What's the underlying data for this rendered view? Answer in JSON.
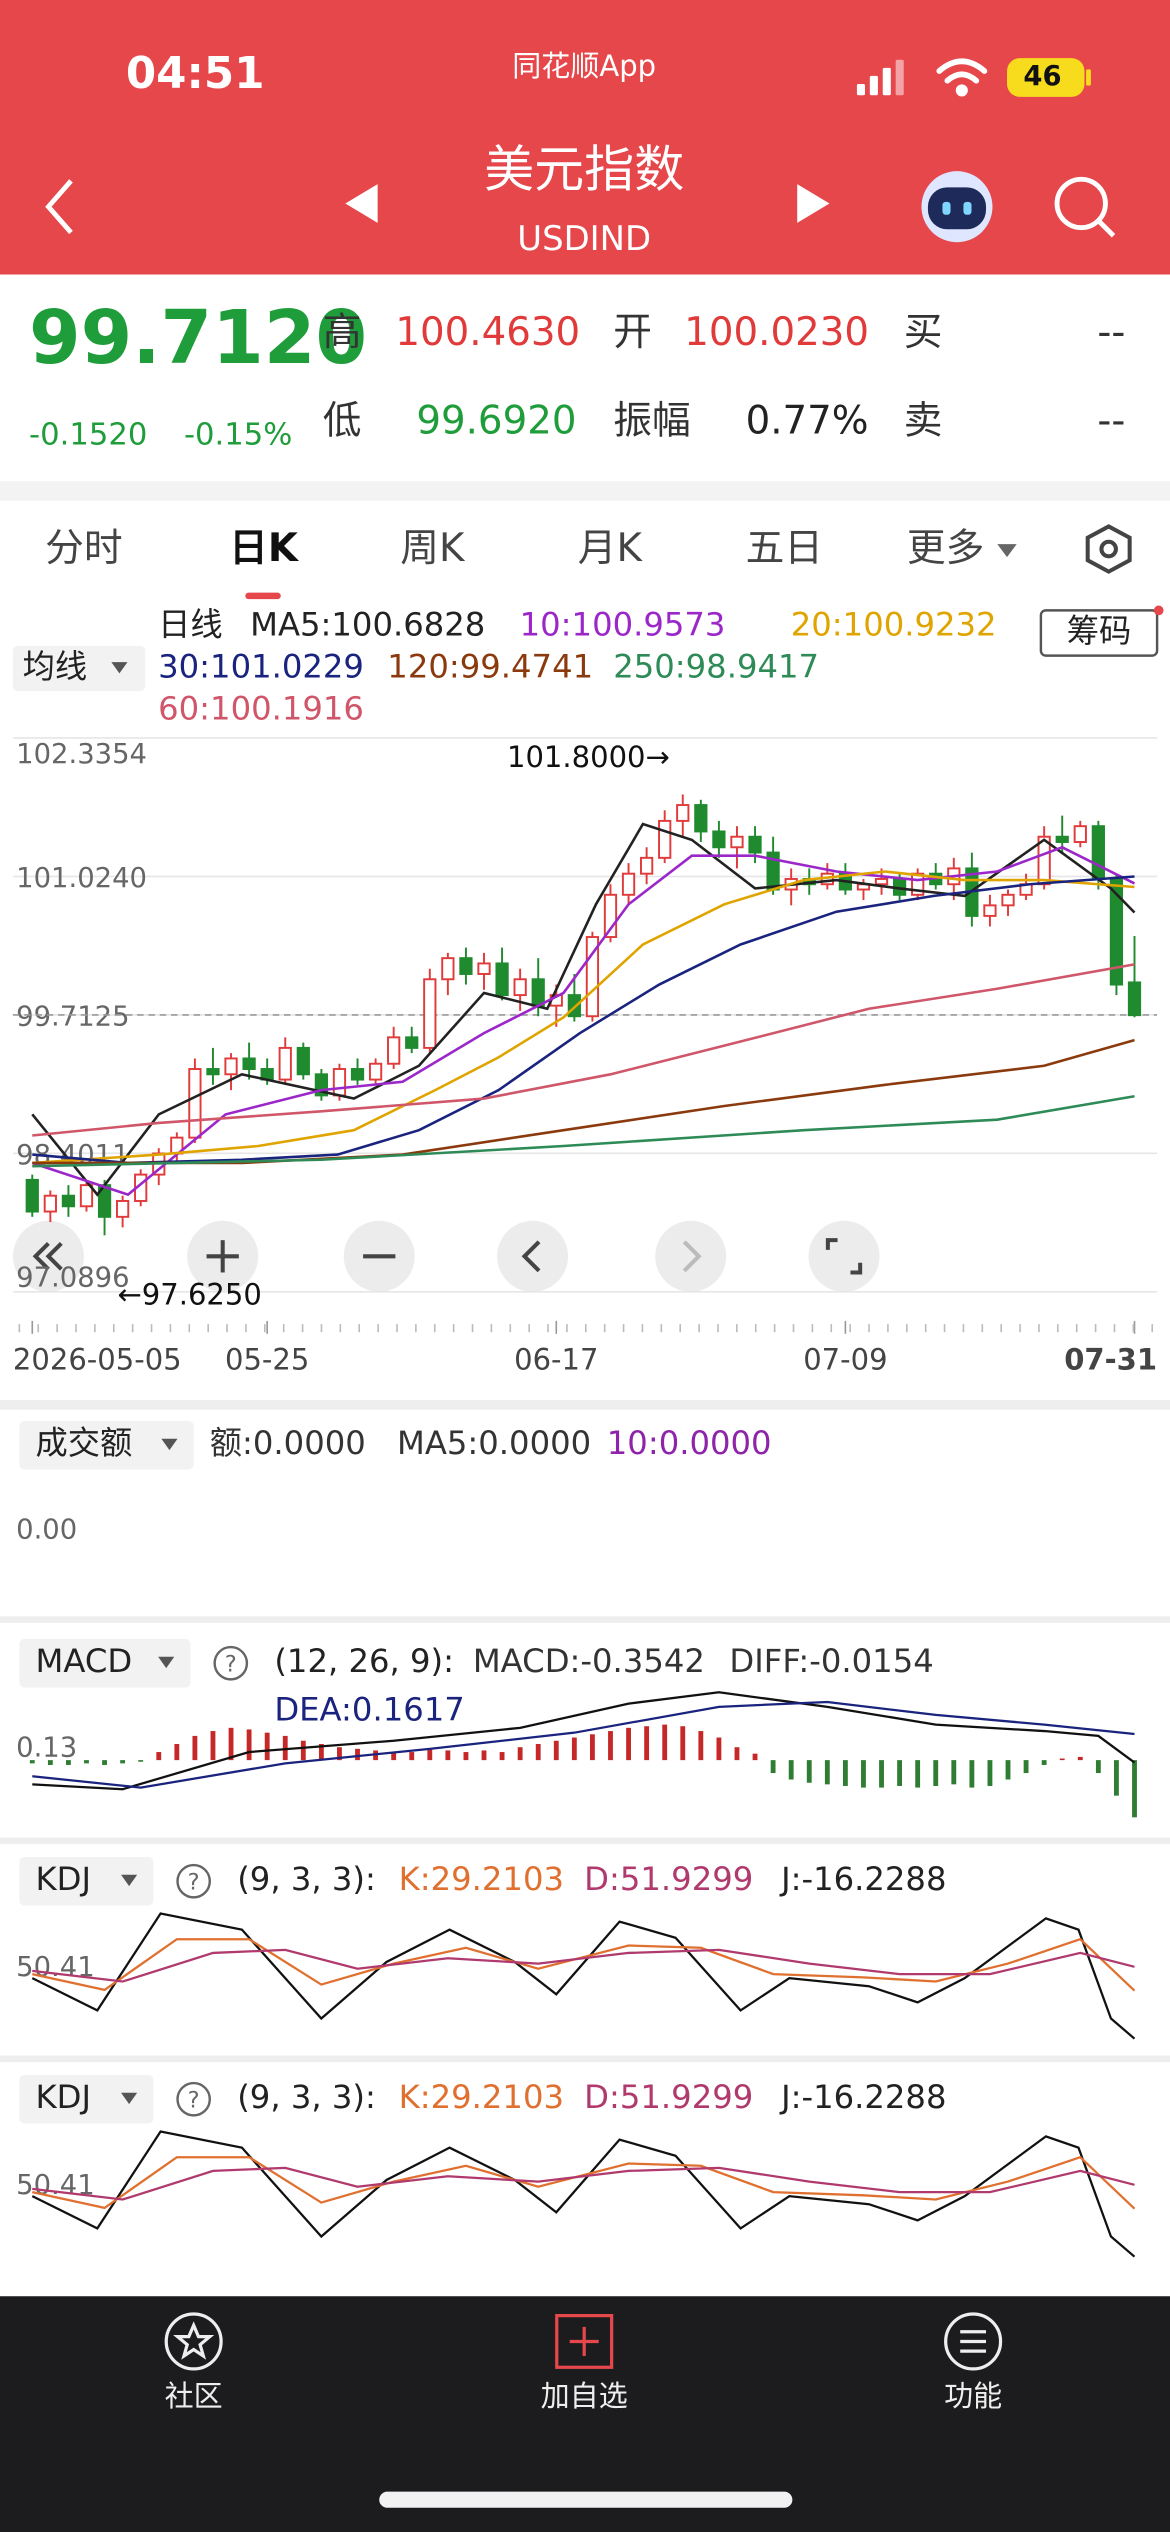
{
  "status_bar": {
    "time": "04:51",
    "app_name": "同花顺App",
    "battery": "46"
  },
  "header": {
    "title": "美元指数",
    "code": "USDIND"
  },
  "quote": {
    "price": "99.7120",
    "change": "-0.1520",
    "change_percent": "-0.15%",
    "fields": [
      {
        "label": "高",
        "value": "100.4630"
      },
      {
        "label": "开",
        "value": "100.0230"
      },
      {
        "label": "买",
        "value": "--"
      },
      {
        "label": "低",
        "value": "99.6920"
      },
      {
        "label": "振幅",
        "value": "0.77%"
      },
      {
        "label": "卖",
        "value": "--"
      }
    ]
  },
  "tabs": {
    "items": [
      "分时",
      "日K",
      "周K",
      "月K",
      "五日",
      "更多"
    ],
    "active": 1
  },
  "kline": {
    "type": "candlestick",
    "indicator_selector": "均线",
    "period_label": "日线",
    "chips_button": "筹码",
    "ylim": [
      97.0896,
      102.3354
    ],
    "yticks": [
      102.3354,
      {
        "value": 101.024,
        "label": "101.0240"
      },
      99.7125,
      98.4011,
      97.0896
    ],
    "last_price_line": 99.712,
    "xlim": [
      0,
      61
    ],
    "xticks": [
      {
        "value": 0,
        "label": "2026-05-05"
      },
      {
        "value": 13,
        "label": "05-25"
      },
      {
        "value": 29,
        "label": "06-17"
      },
      {
        "value": 45,
        "label": "07-09"
      },
      {
        "value": 61,
        "label": "07-31"
      }
    ],
    "up_color": "#e03a3a",
    "down_color": "#1f8a2e",
    "ohlc": [
      [
        98.15,
        98.2,
        97.8,
        97.85
      ],
      [
        97.85,
        98.05,
        97.75,
        98.0
      ],
      [
        98.0,
        98.1,
        97.8,
        97.9
      ],
      [
        97.9,
        98.15,
        97.85,
        98.1
      ],
      [
        98.1,
        98.15,
        97.625,
        97.8
      ],
      [
        97.8,
        98.0,
        97.7,
        97.95
      ],
      [
        97.95,
        98.25,
        97.9,
        98.2
      ],
      [
        98.2,
        98.45,
        98.1,
        98.4
      ],
      [
        98.4,
        98.6,
        98.3,
        98.55
      ],
      [
        98.55,
        99.3,
        98.5,
        99.2
      ],
      [
        99.2,
        99.4,
        99.05,
        99.15
      ],
      [
        99.15,
        99.35,
        99.0,
        99.3
      ],
      [
        99.3,
        99.45,
        99.1,
        99.2
      ],
      [
        99.2,
        99.3,
        99.05,
        99.1
      ],
      [
        99.1,
        99.5,
        99.05,
        99.4
      ],
      [
        99.4,
        99.45,
        99.1,
        99.15
      ],
      [
        99.15,
        99.2,
        98.9,
        98.95
      ],
      [
        98.95,
        99.25,
        98.9,
        99.2
      ],
      [
        99.2,
        99.3,
        99.05,
        99.1
      ],
      [
        99.1,
        99.3,
        99.05,
        99.25
      ],
      [
        99.25,
        99.6,
        99.2,
        99.5
      ],
      [
        99.5,
        99.6,
        99.35,
        99.4
      ],
      [
        99.4,
        100.15,
        99.35,
        100.05
      ],
      [
        100.05,
        100.3,
        99.9,
        100.25
      ],
      [
        100.25,
        100.35,
        100.0,
        100.1
      ],
      [
        100.1,
        100.3,
        99.95,
        100.2
      ],
      [
        100.2,
        100.35,
        99.85,
        99.9
      ],
      [
        99.9,
        100.15,
        99.75,
        100.05
      ],
      [
        100.05,
        100.25,
        99.7,
        99.8
      ],
      [
        99.8,
        100.0,
        99.6,
        99.9
      ],
      [
        99.9,
        100.1,
        99.65,
        99.7
      ],
      [
        99.7,
        100.5,
        99.65,
        100.45
      ],
      [
        100.45,
        100.95,
        100.4,
        100.85
      ],
      [
        100.85,
        101.15,
        100.75,
        101.05
      ],
      [
        101.05,
        101.3,
        100.95,
        101.2
      ],
      [
        101.2,
        101.65,
        101.15,
        101.55
      ],
      [
        101.55,
        101.8,
        101.4,
        101.7
      ],
      [
        101.7,
        101.75,
        101.35,
        101.45
      ],
      [
        101.45,
        101.55,
        101.2,
        101.3
      ],
      [
        101.3,
        101.5,
        101.1,
        101.4
      ],
      [
        101.4,
        101.5,
        101.15,
        101.25
      ],
      [
        101.25,
        101.4,
        100.85,
        100.9
      ],
      [
        100.9,
        101.1,
        100.75,
        101.0
      ],
      [
        101.0,
        101.1,
        100.85,
        100.95
      ],
      [
        100.95,
        101.15,
        100.9,
        101.05
      ],
      [
        101.05,
        101.15,
        100.85,
        100.9
      ],
      [
        100.9,
        101.0,
        100.8,
        100.95
      ],
      [
        100.95,
        101.1,
        100.85,
        101.0
      ],
      [
        101.0,
        101.05,
        100.8,
        100.85
      ],
      [
        100.85,
        101.1,
        100.8,
        101.05
      ],
      [
        101.05,
        101.15,
        100.9,
        100.95
      ],
      [
        100.95,
        101.2,
        100.8,
        101.1
      ],
      [
        101.1,
        101.25,
        100.55,
        100.65
      ],
      [
        100.65,
        100.85,
        100.55,
        100.75
      ],
      [
        100.75,
        100.9,
        100.65,
        100.85
      ],
      [
        100.85,
        101.05,
        100.8,
        100.95
      ],
      [
        100.95,
        101.5,
        100.9,
        101.4
      ],
      [
        101.4,
        101.6,
        101.25,
        101.35
      ],
      [
        101.35,
        101.55,
        101.3,
        101.5
      ],
      [
        101.5,
        101.55,
        100.9,
        101.0
      ],
      [
        101.0,
        101.05,
        99.9,
        100.0
      ],
      [
        100.02,
        100.46,
        99.69,
        99.71
      ]
    ],
    "series": [
      {
        "legend": "MA5:100.6828",
        "color": "#222222",
        "x": [
          0,
          3.6,
          7,
          11.6,
          17.8,
          21.4,
          25,
          28.5,
          31.2,
          33.8,
          36.5,
          40,
          44.5,
          48,
          51.6,
          56,
          59.7,
          61
        ],
        "values": [
          98.77,
          98.01,
          98.77,
          99.15,
          98.92,
          99.23,
          99.92,
          99.77,
          100.76,
          101.52,
          101.37,
          100.91,
          100.99,
          100.91,
          100.84,
          101.37,
          100.91,
          100.6828
        ]
      },
      {
        "legend": "10:100.9573",
        "color": "#9b27c9",
        "x": [
          0,
          5.3,
          10.7,
          16,
          20.5,
          25,
          29.4,
          33,
          36.5,
          40,
          44.5,
          49,
          53.4,
          57,
          61
        ],
        "values": [
          98.31,
          98.01,
          98.77,
          99.0,
          99.08,
          99.54,
          99.92,
          100.76,
          101.22,
          101.22,
          101.07,
          100.99,
          101.07,
          101.3,
          100.9573
        ]
      },
      {
        "legend": "20:100.9232",
        "color": "#e0a400",
        "x": [
          0,
          7,
          12.5,
          17.8,
          22.3,
          25.8,
          29.4,
          33.8,
          38.3,
          42.7,
          47.2,
          51.6,
          56,
          61
        ],
        "values": [
          98.31,
          98.39,
          98.47,
          98.62,
          99.0,
          99.31,
          99.69,
          100.38,
          100.76,
          100.99,
          101.07,
          100.99,
          100.99,
          100.9232
        ]
      },
      {
        "legend": "30:101.0229",
        "color": "#1a237e",
        "x": [
          0,
          5.3,
          11.6,
          16.9,
          21.4,
          25.8,
          30.3,
          34.7,
          39.2,
          44.5,
          49.9,
          55.2,
          61
        ],
        "values": [
          98.39,
          98.31,
          98.34,
          98.39,
          98.62,
          99.0,
          99.54,
          100.0,
          100.38,
          100.69,
          100.84,
          100.95,
          101.0229
        ]
      },
      {
        "legend": "120:99.4741",
        "color": "#8b3a0e",
        "x": [
          0,
          11.6,
          20.5,
          29.4,
          38.3,
          47.2,
          56,
          61
        ],
        "values": [
          98.31,
          98.31,
          98.39,
          98.62,
          98.85,
          99.05,
          99.23,
          99.4741
        ]
      },
      {
        "legend": "250:98.9417",
        "color": "#2e8b57",
        "x": [
          0,
          16,
          29.4,
          42.7,
          53.4,
          61
        ],
        "values": [
          98.28,
          98.34,
          98.47,
          98.62,
          98.72,
          98.9417
        ]
      },
      {
        "legend": "60:100.1916",
        "color": "#d0566a",
        "x": [
          0,
          7,
          16,
          25,
          32,
          39.2,
          46.3,
          53.4,
          61
        ],
        "values": [
          98.57,
          98.69,
          98.8,
          98.92,
          99.15,
          99.46,
          99.77,
          99.96,
          100.1916
        ]
      }
    ],
    "annotations": [
      {
        "text": "101.8000→",
        "x": 36,
        "y": 101.8
      },
      {
        "text": "←97.6250",
        "x": 4,
        "y": 97.625
      }
    ]
  },
  "volume": {
    "selector": "成交额",
    "legend": [
      {
        "text": "额:0.0000",
        "color": "#333333"
      },
      {
        "text": "MA5:0.0000",
        "color": "#333333"
      },
      {
        "text": "10:0.0000",
        "color": "#8e24aa"
      }
    ],
    "yticks": [
      {
        "value": 0,
        "label": "0.00"
      }
    ]
  },
  "macd": {
    "type": "bar",
    "selector": "MACD",
    "help": "?",
    "params": "(12, 26, 9):",
    "legend": [
      {
        "text": "MACD:-0.3542",
        "color": "#333333"
      },
      {
        "text": "DIFF:-0.0154",
        "color": "#333333"
      },
      {
        "text": "DEA:0.1617",
        "color": "#1a237e"
      }
    ],
    "ylim": [
      -0.4,
      0.45
    ],
    "yticks": [
      0.13
    ],
    "up_color": "#c62828",
    "down_color": "#2e7d32",
    "histogram": [
      -0.02,
      -0.03,
      -0.03,
      -0.02,
      -0.03,
      -0.02,
      -0.01,
      0.05,
      0.1,
      0.15,
      0.18,
      0.2,
      0.19,
      0.17,
      0.15,
      0.12,
      0.1,
      0.08,
      0.07,
      0.06,
      0.05,
      0.05,
      0.07,
      0.06,
      0.05,
      0.06,
      0.05,
      0.08,
      0.1,
      0.12,
      0.14,
      0.16,
      0.18,
      0.2,
      0.21,
      0.22,
      0.21,
      0.18,
      0.14,
      0.08,
      0.04,
      -0.08,
      -0.12,
      -0.14,
      -0.15,
      -0.16,
      -0.17,
      -0.17,
      -0.16,
      -0.17,
      -0.16,
      -0.15,
      -0.17,
      -0.16,
      -0.12,
      -0.08,
      -0.03,
      0.01,
      0.02,
      -0.08,
      -0.22,
      -0.3542
    ],
    "series": [
      {
        "color": "#111111",
        "x": [
          0,
          5,
          12,
          20,
          27,
          33,
          38,
          44,
          50,
          56,
          59,
          61
        ],
        "values": [
          -0.15,
          -0.18,
          0.05,
          0.12,
          0.2,
          0.35,
          0.42,
          0.33,
          0.22,
          0.18,
          0.15,
          -0.0154
        ]
      },
      {
        "color": "#1a237e",
        "x": [
          0,
          6,
          14,
          22,
          30,
          38,
          44,
          50,
          56,
          61
        ],
        "values": [
          -0.1,
          -0.17,
          -0.02,
          0.07,
          0.17,
          0.33,
          0.36,
          0.28,
          0.22,
          0.1617
        ]
      }
    ]
  },
  "kdj_panels": [
    {
      "type": "line",
      "selector": "KDJ",
      "help": "?",
      "params": "(9, 3, 3):",
      "legend": [
        {
          "text": "K:29.2103",
          "color": "#e07030"
        },
        {
          "text": "D:51.9299",
          "color": "#b03a6e"
        },
        {
          "text": "J:-16.2288",
          "color": "#222222"
        }
      ],
      "ylim": [
        -20,
        110
      ],
      "yticks": [
        50.41
      ],
      "series": [
        {
          "color": "#111111",
          "x": [
            0,
            3.6,
            7.1,
            11.6,
            16,
            19.6,
            23.1,
            26.7,
            29,
            32.5,
            35.6,
            39.2,
            41.9,
            46.3,
            49,
            51.6,
            56.1,
            57.9,
            59.7,
            61
          ],
          "values": [
            41.2,
            10.6,
            102.4,
            87.1,
            2.9,
            56.5,
            87.1,
            56.5,
            25.9,
            94.7,
            79.4,
            10.6,
            41.2,
            33.5,
            18.2,
            41.2,
            97.8,
            87.1,
            2.9,
            -16.2288
          ]
        },
        {
          "color": "#e07030",
          "x": [
            0,
            4,
            8,
            12,
            16,
            20,
            24,
            28,
            33,
            37,
            41,
            46,
            50,
            54,
            58,
            61
          ],
          "values": [
            45,
            30,
            78,
            78,
            35,
            55,
            70,
            50,
            72,
            70,
            45,
            42,
            38,
            55,
            78,
            29.2103
          ]
        },
        {
          "color": "#b03a6e",
          "x": [
            0,
            5,
            10,
            14,
            18,
            23,
            28,
            33,
            38,
            43,
            48,
            53,
            58,
            61
          ],
          "values": [
            48,
            38,
            65,
            68,
            50,
            60,
            55,
            65,
            68,
            55,
            45,
            45,
            65,
            51.9299
          ]
        }
      ]
    },
    {
      "type": "line",
      "selector": "KDJ",
      "help": "?",
      "params": "(9, 3, 3):",
      "legend": [
        {
          "text": "K:29.2103",
          "color": "#e07030"
        },
        {
          "text": "D:51.9299",
          "color": "#b03a6e"
        },
        {
          "text": "J:-16.2288",
          "color": "#222222"
        }
      ],
      "ylim": [
        -20,
        110
      ],
      "yticks": [
        50.41
      ],
      "series": [
        {
          "color": "#111111",
          "x": [
            0,
            3.6,
            7.1,
            11.6,
            16,
            19.6,
            23.1,
            26.7,
            29,
            32.5,
            35.6,
            39.2,
            41.9,
            46.3,
            49,
            51.6,
            56.1,
            57.9,
            59.7,
            61
          ],
          "values": [
            41.2,
            10.6,
            102.4,
            87.1,
            2.9,
            56.5,
            87.1,
            56.5,
            25.9,
            94.7,
            79.4,
            10.6,
            41.2,
            33.5,
            18.2,
            41.2,
            97.8,
            87.1,
            2.9,
            -16.2288
          ]
        },
        {
          "color": "#e07030",
          "x": [
            0,
            4,
            8,
            12,
            16,
            20,
            24,
            28,
            33,
            37,
            41,
            46,
            50,
            54,
            58,
            61
          ],
          "values": [
            45,
            30,
            78,
            78,
            35,
            55,
            70,
            50,
            72,
            70,
            45,
            42,
            38,
            55,
            78,
            29.2103
          ]
        },
        {
          "color": "#b03a6e",
          "x": [
            0,
            5,
            10,
            14,
            18,
            23,
            28,
            33,
            38,
            43,
            48,
            53,
            58,
            61
          ],
          "values": [
            48,
            38,
            65,
            68,
            50,
            60,
            55,
            65,
            68,
            55,
            45,
            45,
            65,
            51.9299
          ]
        }
      ]
    }
  ],
  "bottom_nav": [
    "社区",
    "加自选",
    "功能"
  ]
}
